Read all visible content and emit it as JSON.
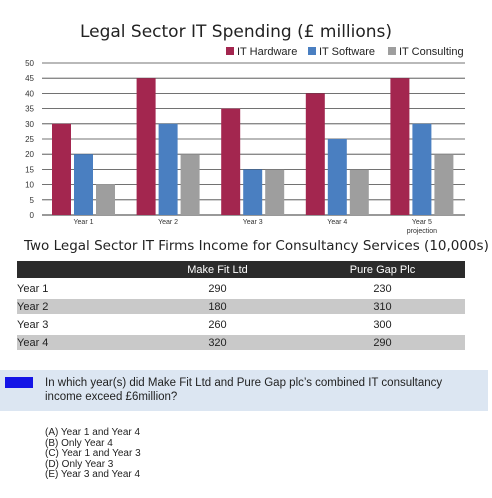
{
  "chart_data": [
    {
      "type": "bar",
      "title": "Legal Sector IT Spending (£ millions)",
      "categories": [
        "Year 1",
        "Year 2",
        "Year 3",
        "Year 4",
        "Year 5"
      ],
      "category_sublabels": [
        "",
        "",
        "",
        "",
        "projection"
      ],
      "series": [
        {
          "name": "IT Hardware",
          "color": "#a3264f",
          "values": [
            30,
            45,
            35,
            40,
            45
          ]
        },
        {
          "name": "IT Software",
          "color": "#4a7fc1",
          "values": [
            20,
            30,
            15,
            25,
            30
          ]
        },
        {
          "name": "IT Consulting",
          "color": "#9e9e9e",
          "values": [
            10,
            20,
            15,
            15,
            20
          ]
        }
      ],
      "ylim": [
        0,
        50
      ],
      "yticks": [
        0,
        5,
        10,
        15,
        20,
        25,
        30,
        35,
        40,
        45,
        50
      ],
      "grid": true,
      "legend_position": "top-right"
    },
    {
      "type": "table",
      "title": "Two Legal Sector IT Firms Income for Consultancy Services (10,000s)",
      "columns": [
        "",
        "Make Fit Ltd",
        "Pure Gap Plc"
      ],
      "rows": [
        {
          "year": "Year 1",
          "make_fit": "290",
          "pure_gap": "230"
        },
        {
          "year": "Year 2",
          "make_fit": "180",
          "pure_gap": "310"
        },
        {
          "year": "Year 3",
          "make_fit": "260",
          "pure_gap": "300"
        },
        {
          "year": "Year 4",
          "make_fit": "320",
          "pure_gap": "290"
        }
      ]
    }
  ],
  "question": {
    "text": "In which year(s) did Make Fit Ltd and Pure Gap plc’s combined IT consultancy income exceed £6million?",
    "marker_color": "#1414e6",
    "options": [
      "(A) Year 1 and Year 4",
      "(B) Only Year 4",
      "(C) Year 1 and Year 3",
      "(D) Only Year 3",
      "(E) Year 3 and Year 4"
    ]
  }
}
